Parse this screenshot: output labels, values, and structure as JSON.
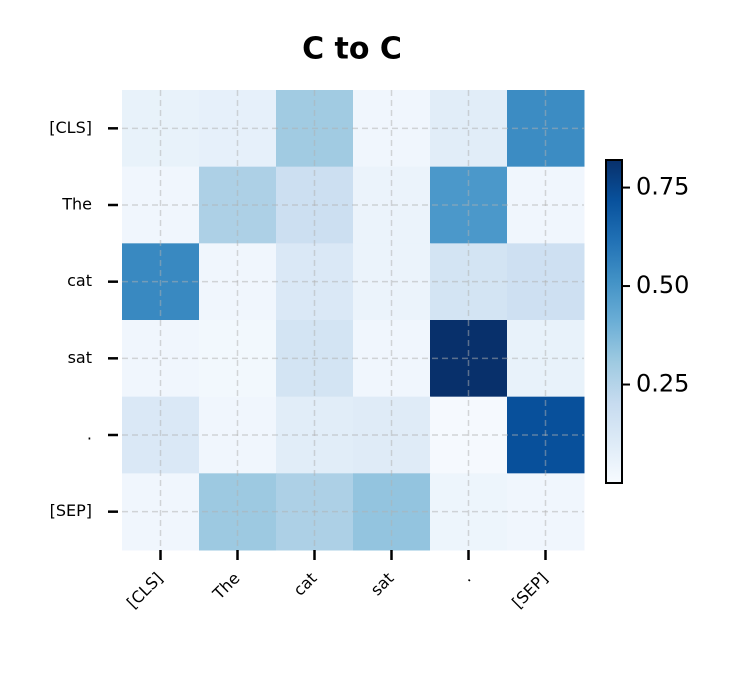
{
  "chart_data": {
    "type": "heatmap",
    "title": "C to C",
    "x_categories": [
      "[CLS]",
      "The",
      "cat",
      "sat",
      ".",
      "[SEP]"
    ],
    "y_categories": [
      "[CLS]",
      "The",
      "cat",
      "sat",
      ".",
      "[SEP]"
    ],
    "z": [
      [
        0.06,
        0.07,
        0.3,
        0.03,
        0.09,
        0.53
      ],
      [
        0.03,
        0.27,
        0.18,
        0.05,
        0.49,
        0.03
      ],
      [
        0.54,
        0.03,
        0.12,
        0.05,
        0.15,
        0.17
      ],
      [
        0.03,
        0.02,
        0.15,
        0.03,
        0.82,
        0.06
      ],
      [
        0.12,
        0.03,
        0.09,
        0.1,
        0.01,
        0.72
      ],
      [
        0.03,
        0.31,
        0.27,
        0.33,
        0.04,
        0.03
      ]
    ],
    "colormap": "Blues",
    "clim": [
      0.0,
      0.82
    ],
    "cticks": [
      0.25,
      {
        "value": 0.5,
        "label": "0.50"
      },
      0.75
    ],
    "grid": true
  }
}
